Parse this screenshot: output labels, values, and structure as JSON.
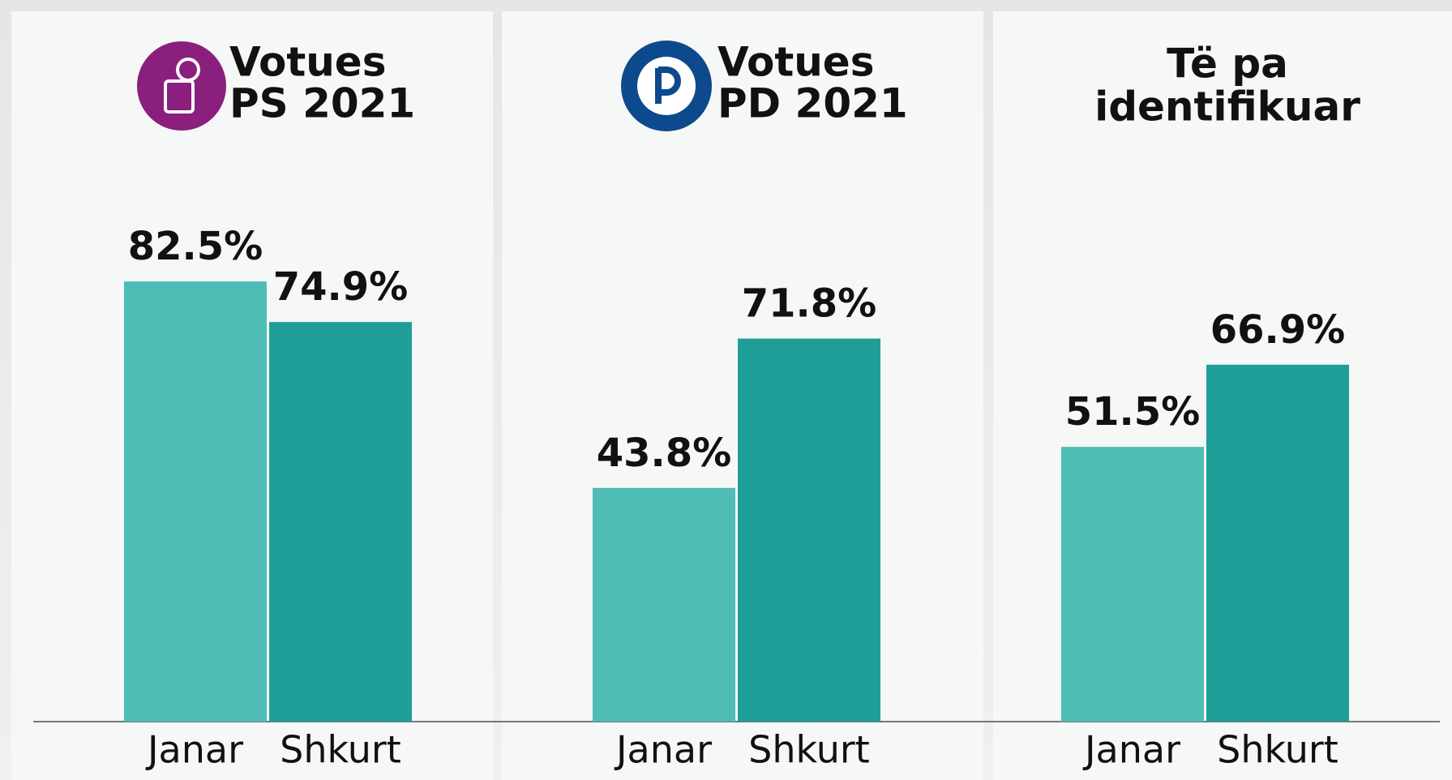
{
  "chart_data": [
    {
      "type": "bar",
      "title": [
        "Votues",
        "PS 2021"
      ],
      "categories": [
        "Janar",
        "Shkurt"
      ],
      "values": [
        82.5,
        74.9
      ],
      "value_labels": [
        "82.5%",
        "74.9%"
      ],
      "colors": [
        "#4dbdb6",
        "#1f9e97"
      ],
      "ylim": [
        0,
        100
      ]
    },
    {
      "type": "bar",
      "title": [
        "Votues",
        "PD 2021"
      ],
      "categories": [
        "Janar",
        "Shkurt"
      ],
      "values": [
        43.8,
        71.8
      ],
      "value_labels": [
        "43.8%",
        "71.8%"
      ],
      "colors": [
        "#4dbdb6",
        "#1f9e97"
      ],
      "ylim": [
        0,
        100
      ]
    },
    {
      "type": "bar",
      "title": [
        "Të pa",
        "identifikuar"
      ],
      "categories": [
        "Janar",
        "Shkurt"
      ],
      "values": [
        51.5,
        66.9
      ],
      "value_labels": [
        "51.5%",
        "66.9%"
      ],
      "colors": [
        "#4dbdb6",
        "#1f9e97"
      ],
      "ylim": [
        0,
        100
      ]
    }
  ]
}
